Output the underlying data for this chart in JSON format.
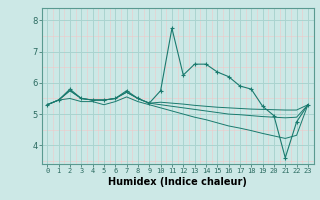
{
  "xlabel": "Humidex (Indice chaleur)",
  "bg_color": "#cce8e6",
  "line_color": "#1a7a6e",
  "grid_major_color": "#aad4d0",
  "grid_minor_color": "#f0c8c8",
  "x_ticks": [
    0,
    1,
    2,
    3,
    4,
    5,
    6,
    7,
    8,
    9,
    10,
    11,
    12,
    13,
    14,
    15,
    16,
    17,
    18,
    19,
    20,
    21,
    22,
    23
  ],
  "y_ticks": [
    4,
    5,
    6,
    7,
    8
  ],
  "ylim": [
    3.4,
    8.4
  ],
  "xlim": [
    -0.5,
    23.5
  ],
  "series_with_markers": [
    5.3,
    5.45,
    5.8,
    5.5,
    5.45,
    5.45,
    5.5,
    5.75,
    5.5,
    5.35,
    5.75,
    7.75,
    6.25,
    6.6,
    6.6,
    6.35,
    6.2,
    5.9,
    5.8,
    5.25,
    4.95,
    3.6,
    4.75,
    5.3
  ],
  "series_upper_flat": [
    5.3,
    5.45,
    5.75,
    5.5,
    5.45,
    5.45,
    5.5,
    5.7,
    5.5,
    5.35,
    5.38,
    5.35,
    5.32,
    5.28,
    5.25,
    5.22,
    5.2,
    5.18,
    5.16,
    5.15,
    5.14,
    5.13,
    5.13,
    5.3
  ],
  "series_mid_flat": [
    5.3,
    5.45,
    5.75,
    5.5,
    5.45,
    5.45,
    5.5,
    5.7,
    5.5,
    5.35,
    5.3,
    5.25,
    5.2,
    5.15,
    5.1,
    5.05,
    5.0,
    4.98,
    4.95,
    4.92,
    4.9,
    4.88,
    4.9,
    5.3
  ],
  "series_lower_flat": [
    5.3,
    5.45,
    5.5,
    5.4,
    5.4,
    5.3,
    5.4,
    5.55,
    5.4,
    5.3,
    5.2,
    5.1,
    5.0,
    4.9,
    4.82,
    4.72,
    4.62,
    4.55,
    4.47,
    4.38,
    4.3,
    4.22,
    4.32,
    5.3
  ]
}
